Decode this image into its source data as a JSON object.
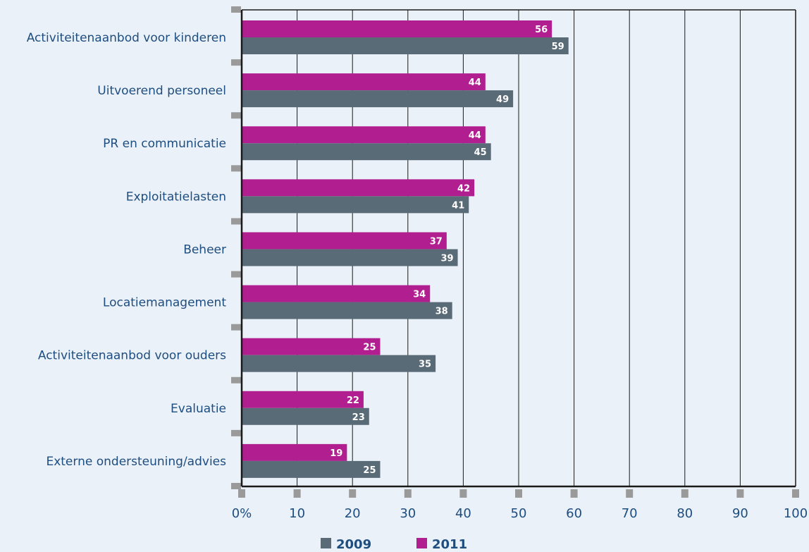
{
  "chart_data": {
    "type": "bar",
    "orientation": "horizontal",
    "categories": [
      "Activiteitenaanbod voor kinderen",
      "Uitvoerend personeel",
      "PR en communicatie",
      "Exploitatielasten",
      "Beheer",
      "Locatiemanagement",
      "Activiteitenaanbod voor ouders",
      "Evaluatie",
      "Externe ondersteuning/advies"
    ],
    "series": [
      {
        "name": "2011",
        "color": "#b01e8f",
        "values": [
          56,
          44,
          44,
          42,
          37,
          34,
          25,
          22,
          19
        ]
      },
      {
        "name": "2009",
        "color": "#5a6b78",
        "values": [
          59,
          49,
          45,
          41,
          39,
          38,
          35,
          23,
          25
        ]
      }
    ],
    "x_ticks": [
      "0%",
      "10",
      "20",
      "30",
      "40",
      "50",
      "60",
      "70",
      "80",
      "90",
      "100"
    ],
    "xlim": [
      0,
      100
    ],
    "grid": true,
    "legend": {
      "placement": "bottom-center",
      "order": [
        "2009",
        "2011"
      ]
    },
    "colors": {
      "axis": "#1a1a1a",
      "grid": "#1a1a1a",
      "tick_mark": "#9a9a9a",
      "text": "#1e4d80",
      "background": "#eaf1f8"
    }
  }
}
